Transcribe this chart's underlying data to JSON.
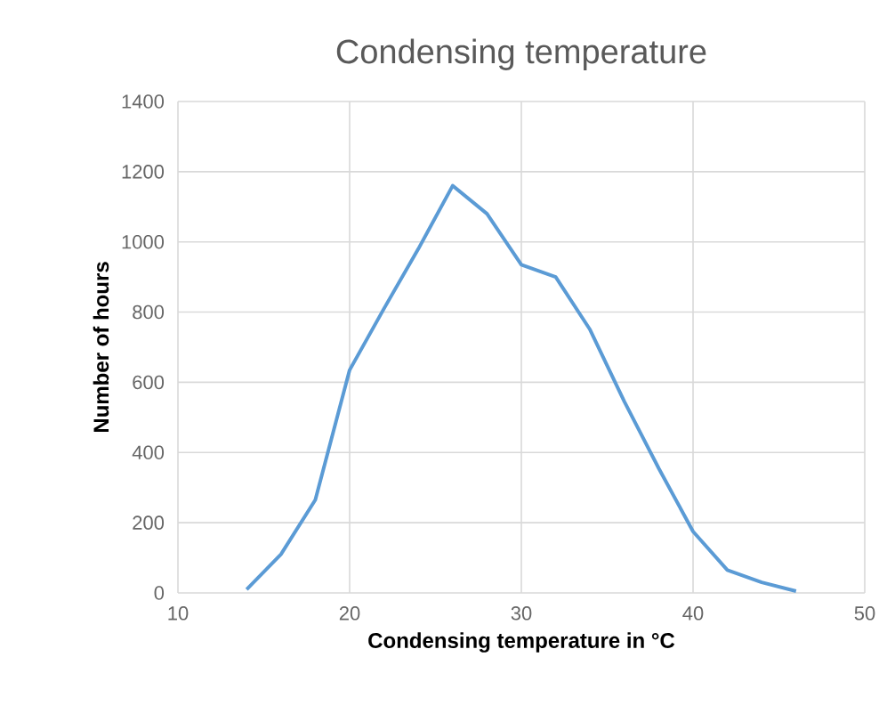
{
  "chart_data": {
    "type": "line",
    "title": "Condensing temperature",
    "xlabel": "Condensing temperature in °C",
    "ylabel": "Number of hours",
    "x": [
      14,
      16,
      18,
      20,
      22,
      24,
      26,
      28,
      30,
      32,
      34,
      36,
      38,
      40,
      42,
      44,
      46
    ],
    "series": [
      {
        "color": "#5b9bd5",
        "values": [
          10,
          110,
          265,
          635,
          810,
          980,
          1160,
          1080,
          935,
          900,
          750,
          545,
          355,
          175,
          65,
          30,
          5
        ]
      }
    ],
    "xlim": [
      10,
      50
    ],
    "xticks": [
      10,
      20,
      30,
      40,
      50
    ],
    "ylim": [
      0,
      1400
    ],
    "yticks": [
      0,
      200,
      400,
      600,
      800,
      1000,
      1200,
      1400
    ],
    "grid": true,
    "marker": "none",
    "line_style": "solid"
  }
}
